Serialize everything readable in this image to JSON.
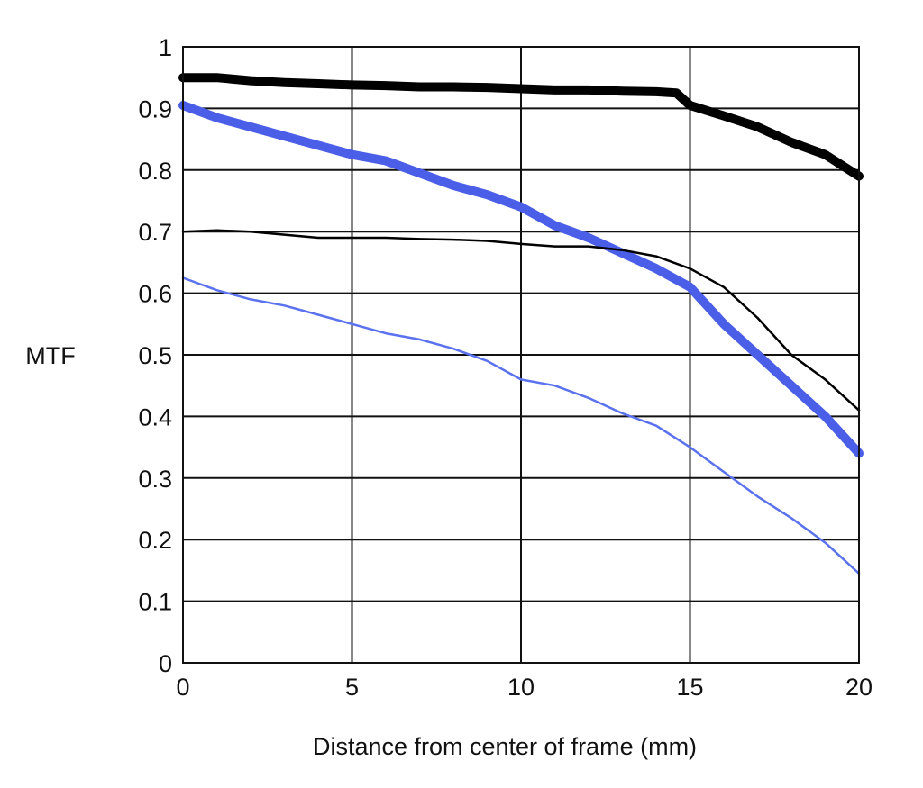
{
  "chart_data": {
    "type": "line",
    "title": "",
    "xlabel": "Distance from center of frame (mm)",
    "ylabel": "MTF",
    "xlim": [
      0,
      20
    ],
    "ylim": [
      0,
      1
    ],
    "xticks": [
      0,
      5,
      10,
      15,
      20
    ],
    "xtick_labels": [
      "0",
      "5",
      "10",
      "15",
      "20"
    ],
    "yticks": [
      0,
      0.1,
      0.2,
      0.3,
      0.4,
      0.5,
      0.6,
      0.7,
      0.8,
      0.9,
      1
    ],
    "ytick_labels": [
      "0",
      "0.1",
      "0.2",
      "0.3",
      "0.4",
      "0.5",
      "0.6",
      "0.7",
      "0.8",
      "0.9",
      "1"
    ],
    "grid": true,
    "legend": "none",
    "series": [
      {
        "color": "#000000",
        "line_weight": "thick",
        "x": [
          0,
          1,
          2,
          3,
          4,
          5,
          6,
          7,
          8,
          9,
          10,
          11,
          12,
          13,
          14,
          14.6,
          15,
          16,
          17,
          18,
          19,
          20
        ],
        "y": [
          0.95,
          0.95,
          0.945,
          0.942,
          0.94,
          0.938,
          0.937,
          0.935,
          0.935,
          0.934,
          0.932,
          0.93,
          0.93,
          0.928,
          0.927,
          0.925,
          0.905,
          0.888,
          0.87,
          0.845,
          0.825,
          0.79
        ]
      },
      {
        "color": "#4a5ee8",
        "line_weight": "thick",
        "x": [
          0,
          1,
          2,
          3,
          4,
          5,
          6,
          7,
          8,
          9,
          10,
          11,
          12,
          13,
          14,
          15,
          16,
          17,
          18,
          19,
          20
        ],
        "y": [
          0.905,
          0.885,
          0.87,
          0.855,
          0.84,
          0.825,
          0.815,
          0.795,
          0.775,
          0.76,
          0.74,
          0.71,
          0.69,
          0.665,
          0.64,
          0.61,
          0.55,
          0.5,
          0.45,
          0.4,
          0.34
        ]
      },
      {
        "color": "#000000",
        "line_weight": "thin",
        "x": [
          0,
          1,
          2,
          3,
          4,
          5,
          6,
          7,
          8,
          9,
          10,
          11,
          12,
          13,
          14,
          15,
          16,
          17,
          18,
          19,
          20
        ],
        "y": [
          0.7,
          0.702,
          0.7,
          0.695,
          0.69,
          0.69,
          0.69,
          0.688,
          0.687,
          0.685,
          0.68,
          0.676,
          0.676,
          0.67,
          0.66,
          0.64,
          0.61,
          0.56,
          0.5,
          0.46,
          0.41
        ]
      },
      {
        "color": "#5a72ee",
        "line_weight": "thin",
        "x": [
          0,
          1,
          2,
          3,
          4,
          5,
          6,
          7,
          8,
          9,
          10,
          11,
          12,
          13,
          14,
          15,
          16,
          17,
          18,
          19,
          20
        ],
        "y": [
          0.625,
          0.605,
          0.59,
          0.58,
          0.565,
          0.55,
          0.535,
          0.525,
          0.51,
          0.49,
          0.46,
          0.45,
          0.43,
          0.405,
          0.385,
          0.35,
          0.31,
          0.27,
          0.235,
          0.195,
          0.145
        ]
      }
    ]
  }
}
